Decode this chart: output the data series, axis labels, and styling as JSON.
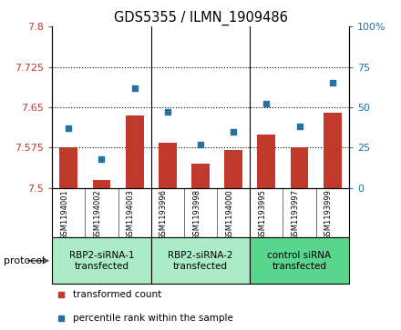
{
  "title": "GDS5355 / ILMN_1909486",
  "samples": [
    "GSM1194001",
    "GSM1194002",
    "GSM1194003",
    "GSM1193996",
    "GSM1193998",
    "GSM1194000",
    "GSM1193995",
    "GSM1193997",
    "GSM1193999"
  ],
  "bar_values": [
    7.575,
    7.515,
    7.635,
    7.585,
    7.545,
    7.57,
    7.6,
    7.575,
    7.64
  ],
  "dot_values": [
    37,
    18,
    62,
    47,
    27,
    35,
    52,
    38,
    65
  ],
  "ylim_left": [
    7.5,
    7.8
  ],
  "ylim_right": [
    0,
    100
  ],
  "yticks_left": [
    7.5,
    7.575,
    7.65,
    7.725,
    7.8
  ],
  "yticks_right": [
    0,
    25,
    50,
    75,
    100
  ],
  "ytick_labels_left": [
    "7.5",
    "7.575",
    "7.65",
    "7.725",
    "7.8"
  ],
  "ytick_labels_right": [
    "0",
    "25",
    "50",
    "75",
    "100%"
  ],
  "hlines": [
    7.575,
    7.65,
    7.725
  ],
  "bar_color": "#c0392b",
  "dot_color": "#2471a3",
  "groups": [
    {
      "label": "RBP2-siRNA-1\ntransfected",
      "start": 0,
      "end": 3,
      "color": "#abebc6"
    },
    {
      "label": "RBP2-siRNA-2\ntransfected",
      "start": 3,
      "end": 6,
      "color": "#abebc6"
    },
    {
      "label": "control siRNA\ntransfected",
      "start": 6,
      "end": 9,
      "color": "#58d68d"
    }
  ],
  "sample_bg_color": "#d5d5d5",
  "protocol_label": "protocol",
  "legend_bar_label": "transformed count",
  "legend_dot_label": "percentile rank within the sample"
}
